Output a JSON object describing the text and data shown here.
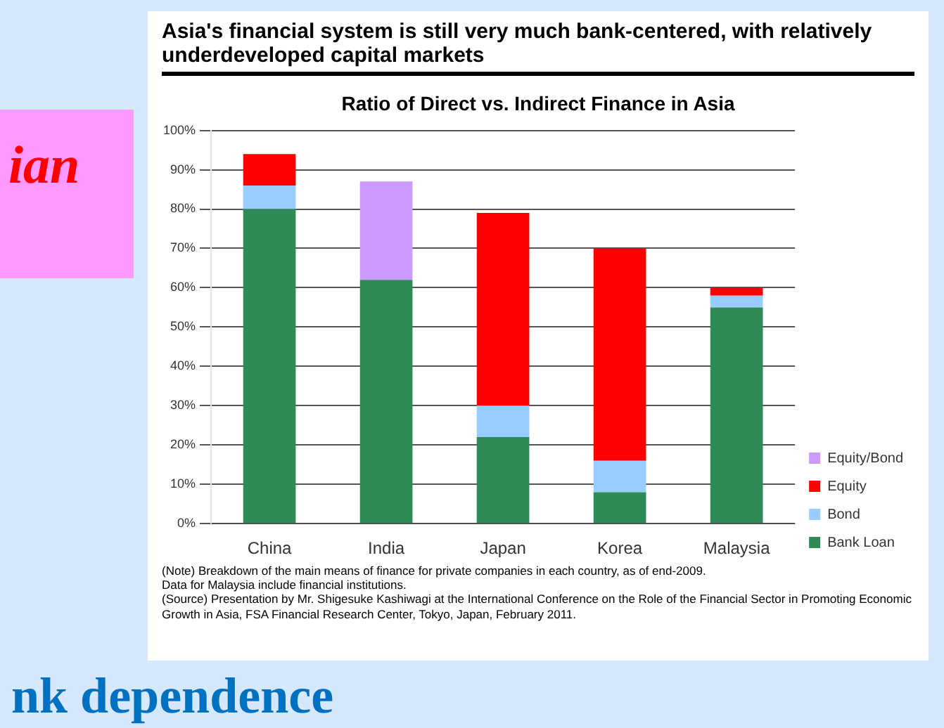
{
  "chart_data": {
    "type": "bar",
    "stacked": true,
    "title": "Asia's financial system is still very much bank-centered, with relatively underdeveloped capital markets",
    "subtitle": "Ratio of Direct vs. Indirect Finance in Asia",
    "categories": [
      "China",
      "India",
      "Japan",
      "Korea",
      "Malaysia"
    ],
    "series": [
      {
        "name": "Bank Loan",
        "color": "#2e8b57",
        "values": [
          80,
          62,
          22,
          8,
          55
        ]
      },
      {
        "name": "Bond",
        "color": "#99ccff",
        "values": [
          6,
          0,
          8,
          8,
          3
        ]
      },
      {
        "name": "Equity",
        "color": "#ff0000",
        "values": [
          8,
          0,
          49,
          54,
          2
        ]
      },
      {
        "name": "Equity/Bond",
        "color": "#cc99ff",
        "values": [
          0,
          25,
          0,
          0,
          0
        ]
      }
    ],
    "ylim": [
      0,
      100
    ],
    "yticks": [
      {
        "value": 0,
        "label": "0%"
      },
      {
        "value": 10,
        "label": "10%"
      },
      {
        "value": 20,
        "label": "20%"
      },
      {
        "value": 30,
        "label": "30%"
      },
      {
        "value": 40,
        "label": "40%"
      },
      {
        "value": 50,
        "label": "50%"
      },
      {
        "value": 60,
        "label": "60%"
      },
      {
        "value": 70,
        "label": "70%"
      },
      {
        "value": 80,
        "label": "80%"
      },
      {
        "value": 90,
        "label": "90%"
      },
      {
        "value": 100,
        "label": "100%"
      }
    ],
    "grid": "y",
    "legend": "right",
    "annotations": [
      "ian",
      "(Note) Breakdown of the main means of finance for private companies in each country, as of end-2009.",
      "Data for Malaysia include financial institutions.",
      "(Source) Presentation by Mr. Shigesuke Kashiwagi at the International Conference on the Role of the Financial Sector in Promoting Economic Growth in Asia, FSA Financial Research Center, Tokyo, Japan, February 2011.",
      "nk dependence"
    ]
  }
}
